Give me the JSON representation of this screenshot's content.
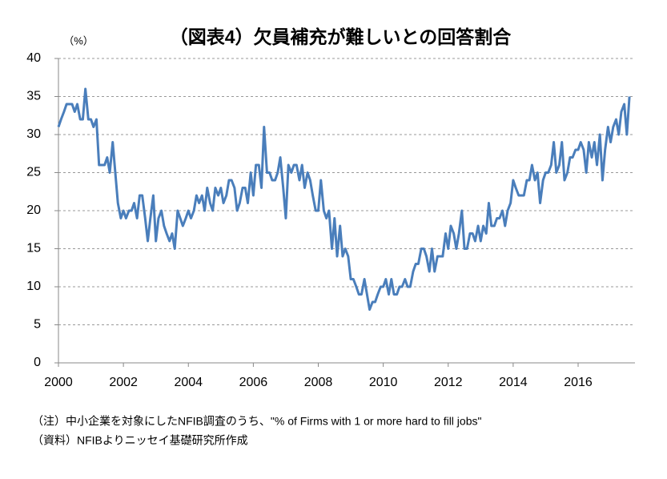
{
  "chart_data": {
    "type": "line",
    "title": "（図表4）欠員補充が難しいとの回答割合",
    "y_label": "（%）",
    "notes": [
      "（注）中小企業を対象にしたNFIB調査のうち、\"% of Firms with 1 or more hard to fill jobs\"",
      "（資料）NFIBよりニッセイ基礎研究所作成"
    ],
    "x": [
      2000,
      2000.08,
      2000.17,
      2000.25,
      2000.33,
      2000.42,
      2000.5,
      2000.58,
      2000.67,
      2000.75,
      2000.83,
      2000.92,
      2001,
      2001.08,
      2001.17,
      2001.25,
      2001.33,
      2001.42,
      2001.5,
      2001.58,
      2001.67,
      2001.75,
      2001.83,
      2001.92,
      2002,
      2002.08,
      2002.17,
      2002.25,
      2002.33,
      2002.42,
      2002.5,
      2002.58,
      2002.67,
      2002.75,
      2002.83,
      2002.92,
      2003,
      2003.08,
      2003.17,
      2003.25,
      2003.33,
      2003.42,
      2003.5,
      2003.58,
      2003.67,
      2003.75,
      2003.83,
      2003.92,
      2004,
      2004.08,
      2004.17,
      2004.25,
      2004.33,
      2004.42,
      2004.5,
      2004.58,
      2004.67,
      2004.75,
      2004.83,
      2004.92,
      2005,
      2005.08,
      2005.17,
      2005.25,
      2005.33,
      2005.42,
      2005.5,
      2005.58,
      2005.67,
      2005.75,
      2005.83,
      2005.92,
      2006,
      2006.08,
      2006.17,
      2006.25,
      2006.33,
      2006.42,
      2006.5,
      2006.58,
      2006.67,
      2006.75,
      2006.83,
      2006.92,
      2007,
      2007.08,
      2007.17,
      2007.25,
      2007.33,
      2007.42,
      2007.5,
      2007.58,
      2007.67,
      2007.75,
      2007.83,
      2007.92,
      2008,
      2008.08,
      2008.17,
      2008.25,
      2008.33,
      2008.42,
      2008.5,
      2008.58,
      2008.67,
      2008.75,
      2008.83,
      2008.92,
      2009,
      2009.08,
      2009.17,
      2009.25,
      2009.33,
      2009.42,
      2009.5,
      2009.58,
      2009.67,
      2009.75,
      2009.83,
      2009.92,
      2010,
      2010.08,
      2010.17,
      2010.25,
      2010.33,
      2010.42,
      2010.5,
      2010.58,
      2010.67,
      2010.75,
      2010.83,
      2010.92,
      2011,
      2011.08,
      2011.17,
      2011.25,
      2011.33,
      2011.42,
      2011.5,
      2011.58,
      2011.67,
      2011.75,
      2011.83,
      2011.92,
      2012,
      2012.08,
      2012.17,
      2012.25,
      2012.33,
      2012.42,
      2012.5,
      2012.58,
      2012.67,
      2012.75,
      2012.83,
      2012.92,
      2013,
      2013.08,
      2013.17,
      2013.25,
      2013.33,
      2013.42,
      2013.5,
      2013.58,
      2013.67,
      2013.75,
      2013.83,
      2013.92,
      2014,
      2014.08,
      2014.17,
      2014.25,
      2014.33,
      2014.42,
      2014.5,
      2014.58,
      2014.67,
      2014.75,
      2014.83,
      2014.92,
      2015,
      2015.08,
      2015.17,
      2015.25,
      2015.33,
      2015.42,
      2015.5,
      2015.58,
      2015.67,
      2015.75,
      2015.83,
      2015.92,
      2016,
      2016.08,
      2016.17,
      2016.25,
      2016.33,
      2016.42,
      2016.5,
      2016.58,
      2016.67,
      2016.75,
      2016.83,
      2016.92,
      2017,
      2017.08,
      2017.17,
      2017.25,
      2017.33,
      2017.42,
      2017.5,
      2017.58
    ],
    "series": [
      {
        "color": "#4a7ebb",
        "values": [
          31,
          32,
          33,
          34,
          34,
          34,
          33,
          34,
          32,
          32,
          36,
          32,
          32,
          31,
          32,
          26,
          26,
          26,
          27,
          25,
          29,
          25,
          21,
          19,
          20,
          19,
          20,
          20,
          21,
          19,
          22,
          22,
          19,
          16,
          19,
          22,
          16,
          19,
          20,
          18,
          17,
          16,
          17,
          15,
          20,
          19,
          18,
          19,
          20,
          19,
          20,
          22,
          21,
          22,
          20,
          23,
          21,
          20,
          23,
          22,
          23,
          21,
          22,
          24,
          24,
          23,
          20,
          21,
          23,
          23,
          21,
          25,
          22,
          26,
          26,
          23,
          31,
          25,
          25,
          24,
          24,
          25,
          27,
          23,
          19,
          26,
          25,
          26,
          26,
          24,
          26,
          23,
          25,
          24,
          22,
          20,
          20,
          24,
          20,
          19,
          20,
          15,
          19,
          14,
          18,
          14,
          15,
          14,
          11,
          11,
          10,
          9,
          9,
          11,
          9,
          7,
          8,
          8,
          9,
          10,
          10,
          11,
          9,
          11,
          9,
          9,
          10,
          10,
          11,
          10,
          10,
          12,
          13,
          13,
          15,
          15,
          14,
          12,
          15,
          12,
          14,
          14,
          14,
          17,
          15,
          18,
          17,
          15,
          17,
          20,
          15,
          15,
          17,
          17,
          16,
          18,
          16,
          18,
          17,
          21,
          18,
          18,
          19,
          19,
          20,
          18,
          20,
          21,
          24,
          23,
          22,
          22,
          22,
          24,
          24,
          26,
          24,
          25,
          21,
          24,
          25,
          25,
          26,
          29,
          25,
          26,
          29,
          24,
          25,
          27,
          27,
          28,
          28,
          29,
          28,
          25,
          29,
          27,
          29,
          26,
          30,
          24,
          28,
          31,
          29,
          31,
          32,
          30,
          33,
          34,
          30,
          35
        ]
      }
    ],
    "xlim": [
      2000,
      2017.75
    ],
    "xticks": [
      2000,
      2002,
      2004,
      2006,
      2008,
      2010,
      2012,
      2014,
      2016
    ],
    "ylim": [
      0,
      40
    ],
    "yticks": [
      0,
      5,
      10,
      15,
      20,
      25,
      30,
      35,
      40
    ],
    "grid": true
  }
}
